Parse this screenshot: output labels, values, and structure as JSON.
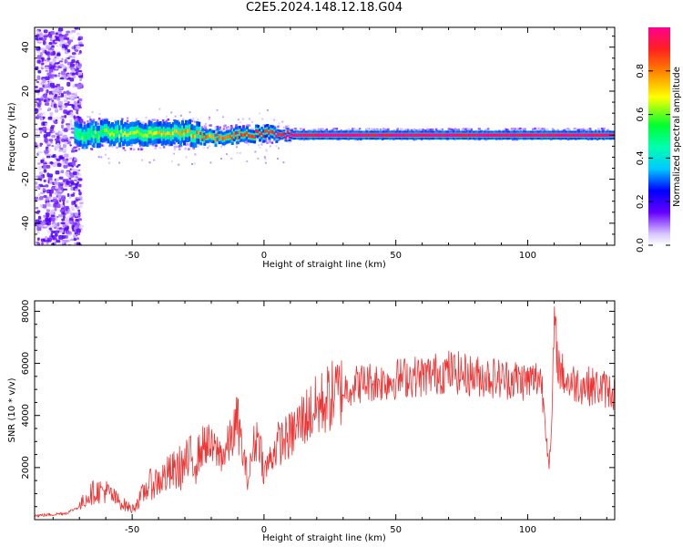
{
  "title": "C2E5.2024.148.12.18.G04",
  "chart_data": [
    {
      "type": "heatmap",
      "xlabel": "Height of straight line (km)",
      "ylabel": "Frequency (Hz)",
      "xlim": [
        -87,
        133
      ],
      "ylim": [
        -50,
        49
      ],
      "xticks": [
        -50,
        0,
        50,
        100
      ],
      "yticks": [
        -40,
        -20,
        0,
        20,
        40
      ],
      "colorbar": {
        "label": "Normalized spectral amplitude",
        "range": [
          0,
          1
        ],
        "ticks": [
          "0.0",
          "0.2",
          "0.4",
          "0.6",
          "0.8"
        ],
        "colormap": [
          "#ffffff",
          "#d9c8ff",
          "#6600ff",
          "#0000ff",
          "#00c8ff",
          "#00ff60",
          "#ffff00",
          "#ff8000",
          "#ff2020",
          "#ff0080"
        ]
      },
      "ridge": [
        {
          "x": -70,
          "freq": 0,
          "amp": 0.55
        },
        {
          "x": -60,
          "freq": 1,
          "amp": 0.6
        },
        {
          "x": -50,
          "freq": 1,
          "amp": 0.65
        },
        {
          "x": -40,
          "freq": 1,
          "amp": 0.7
        },
        {
          "x": -30,
          "freq": 1,
          "amp": 0.75
        },
        {
          "x": -20,
          "freq": -1,
          "amp": 0.8
        },
        {
          "x": -10,
          "freq": 0,
          "amp": 0.85
        },
        {
          "x": 0,
          "freq": 1,
          "amp": 0.9
        },
        {
          "x": 10,
          "freq": 0,
          "amp": 1.0
        },
        {
          "x": 133,
          "freq": 0,
          "amp": 1.0
        }
      ]
    },
    {
      "type": "line",
      "xlabel": "Height of straight line (km)",
      "ylabel": "SNR (10 * v/v)",
      "xlim": [
        -87,
        133
      ],
      "ylim": [
        0,
        8400
      ],
      "xticks": [
        -50,
        0,
        50,
        100
      ],
      "yticks": [
        2000,
        4000,
        6000,
        8000
      ],
      "series": [
        {
          "color": "#ee3333",
          "x": [
            -87,
            -80,
            -75,
            -70,
            -67,
            -64,
            -60,
            -55,
            -50,
            -47,
            -44,
            -40,
            -35,
            -30,
            -25,
            -22,
            -20,
            -15,
            -12,
            -10,
            -8,
            -6,
            -4,
            -2,
            0,
            5,
            10,
            15,
            20,
            25,
            30,
            35,
            40,
            45,
            50,
            55,
            60,
            65,
            70,
            75,
            80,
            85,
            90,
            95,
            100,
            103,
            105,
            107,
            108,
            109,
            110,
            111,
            112,
            115,
            120,
            125,
            130,
            133
          ],
          "y": [
            150,
            200,
            250,
            500,
            900,
            1100,
            1100,
            700,
            400,
            800,
            1300,
            1500,
            1800,
            2100,
            2500,
            3000,
            2700,
            2500,
            3200,
            3800,
            2500,
            1500,
            2800,
            3300,
            1800,
            2900,
            3200,
            3900,
            4300,
            4700,
            5000,
            5200,
            5300,
            5300,
            5400,
            5500,
            5500,
            5600,
            5700,
            5600,
            5500,
            5500,
            5400,
            5400,
            5300,
            5400,
            5500,
            3500,
            2100,
            3000,
            7500,
            6500,
            5800,
            5300,
            5200,
            5100,
            5000,
            4900
          ]
        }
      ]
    }
  ]
}
